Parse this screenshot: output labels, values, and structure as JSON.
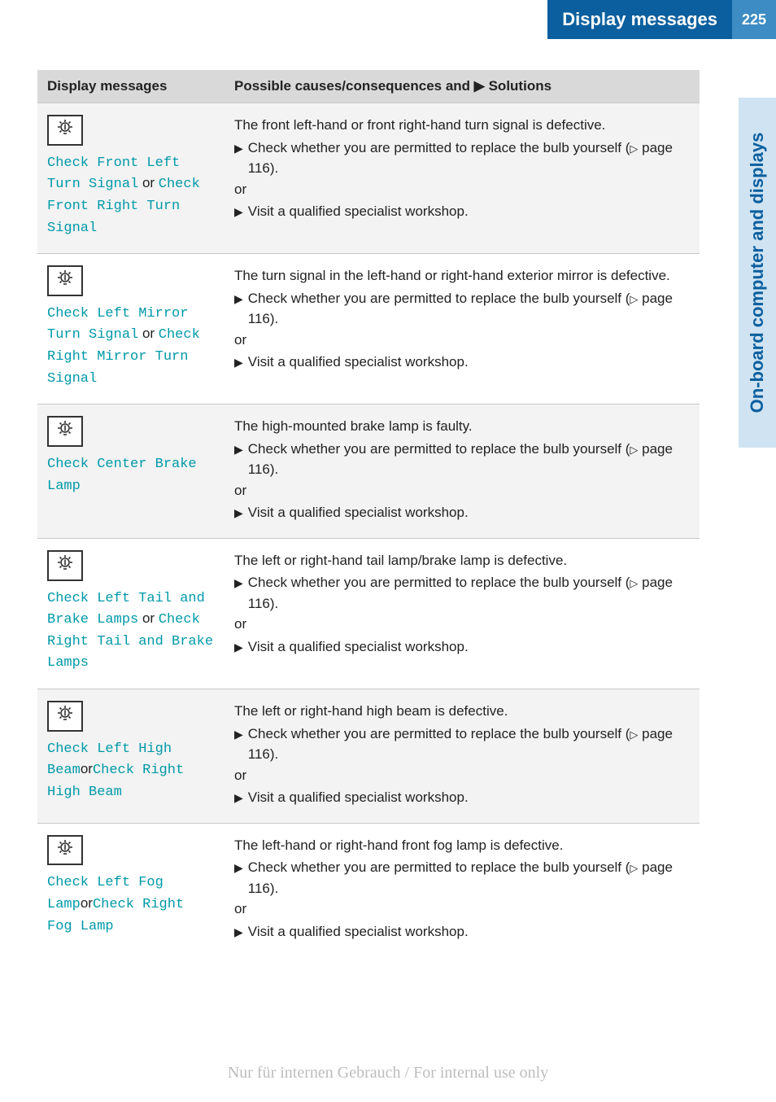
{
  "header": {
    "title": "Display messages",
    "page_number": "225",
    "bg_color": "#0b5f9e",
    "pagenum_bg": "#3d8cc4"
  },
  "side_tab": {
    "label": "On-board computer and displays",
    "text_color": "#0b5f9e",
    "bg_color": "#cfe3f2"
  },
  "table": {
    "header_col1": "Display messages",
    "header_col2_prefix": "Possible causes/consequences and ",
    "header_col2_suffix": " Solutions",
    "page_ref": "page 116",
    "check_text": "Check whether you are permitted to replace the bulb yourself",
    "or_text": "or",
    "visit_text": "Visit a qualified specialist workshop.",
    "rows": [
      {
        "codes": [
          "Check Front Left Turn Signal",
          "Check Front Right Turn Signal"
        ],
        "joiner": " or ",
        "cause": "The front left-hand or front right-hand turn signal is defective."
      },
      {
        "codes": [
          "Check Left Mirror Turn Signal",
          "Check Right Mirror Turn Signal"
        ],
        "joiner": " or ",
        "cause": "The turn signal in the left-hand or right-hand exterior mirror is defective."
      },
      {
        "codes": [
          "Check Center Brake Lamp"
        ],
        "joiner": "",
        "cause": "The high-mounted brake lamp is faulty."
      },
      {
        "codes": [
          "Check Left Tail and Brake Lamps",
          "Check Right Tail and Brake Lamps"
        ],
        "joiner": " or ",
        "cause": "The left or right-hand tail lamp/brake lamp is defective."
      },
      {
        "codes": [
          "Check Left High Beam",
          "Check Right High Beam"
        ],
        "joiner": "or",
        "cause": "The left or right-hand high beam is defective."
      },
      {
        "codes": [
          "Check Left Fog Lamp",
          "Check Right Fog Lamp"
        ],
        "joiner": "or",
        "cause": "The left-hand or right-hand front fog lamp is defective."
      }
    ]
  },
  "watermark": "Nur für internen Gebrauch / For internal use only",
  "colors": {
    "code_text": "#0099a8",
    "row_alt_bg": "#f3f3f3",
    "header_row_bg": "#d9d9d9"
  }
}
